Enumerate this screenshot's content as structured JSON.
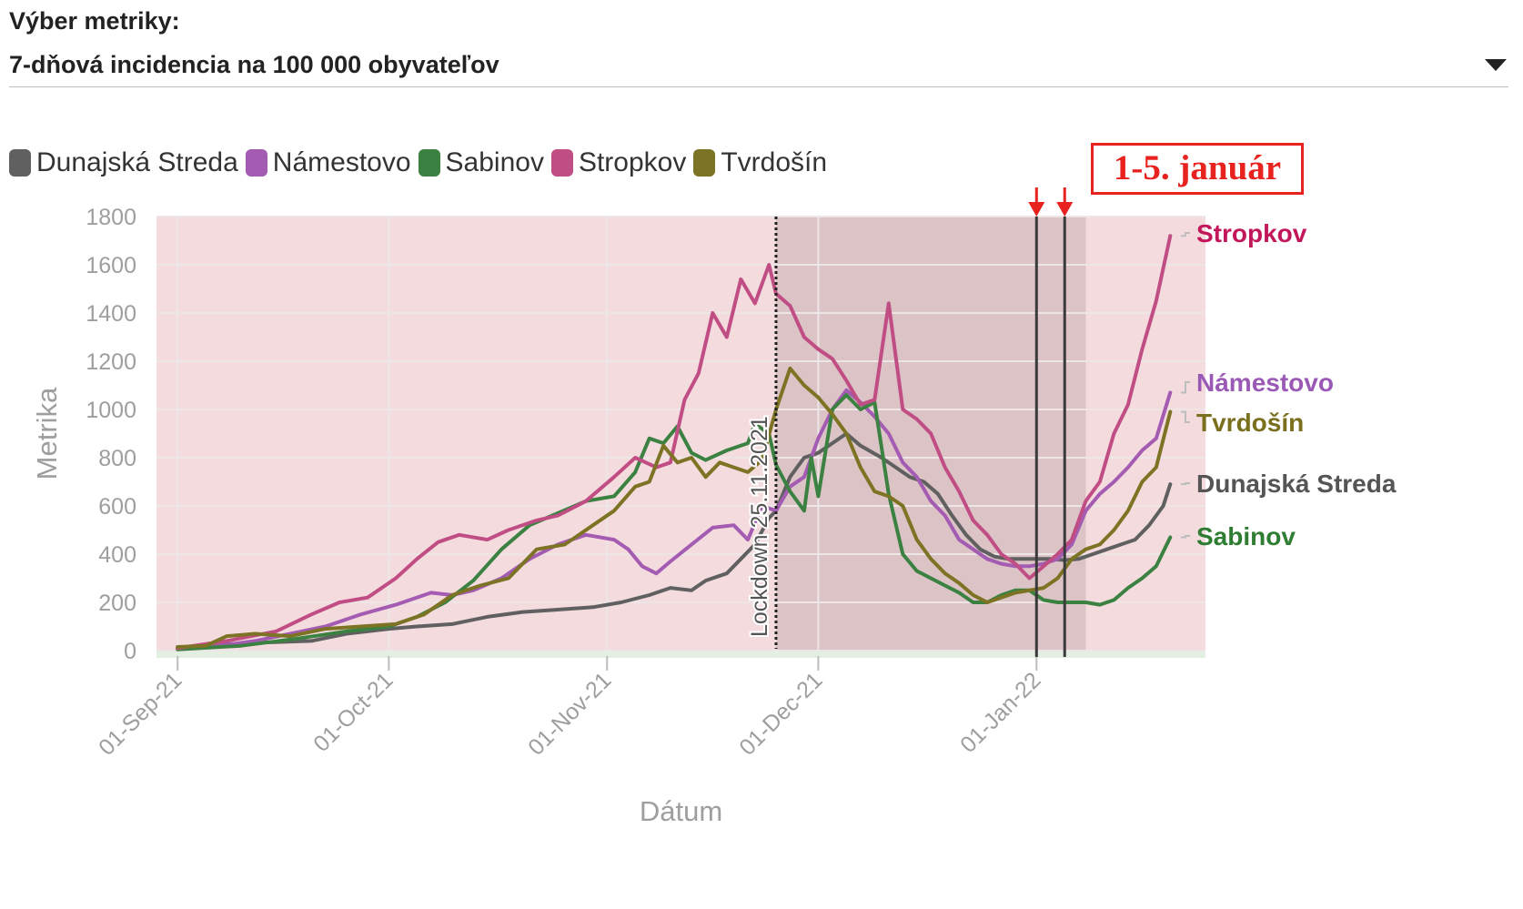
{
  "selector": {
    "label": "Výber metriky:",
    "value": "7-dňová incidencia na 100 000 obyvateľov"
  },
  "annotation": {
    "text": "1-5. január",
    "color": "#e8221f"
  },
  "colors": {
    "plot_background": "#f4dcde",
    "lockdown_shade": "#dcc3c6",
    "bottom_band": "#e3efe0",
    "grid": "#ece6e6",
    "axis_text": "#9e9e9e",
    "annotation": "#e8221f"
  },
  "chart_data": {
    "type": "line",
    "title": "",
    "xlabel": "Dátum",
    "ylabel": "Metrika",
    "ylim": [
      0,
      1800
    ],
    "y_ticks": [
      0,
      200,
      400,
      600,
      800,
      1000,
      1200,
      1400,
      1600,
      1800
    ],
    "x_ticks": [
      "01-Sep-21",
      "01-Oct-21",
      "01-Nov-21",
      "01-Dec-21",
      "01-Jan-22"
    ],
    "xlim": [
      "2021-08-29",
      "2022-01-25"
    ],
    "legend_position": "top-left",
    "grid": true,
    "lockdown": {
      "date": "2021-11-25",
      "label": "Lockdown 25.11.2021",
      "shaded_from": "2021-11-25",
      "shaded_to": "2022-01-08"
    },
    "markers": [
      {
        "date": "2022-01-01"
      },
      {
        "date": "2022-01-05"
      }
    ],
    "series": [
      {
        "name": "Dunajská Streda",
        "color": "#606060",
        "label_color": "#555555",
        "points": [
          [
            "2021-09-01",
            10
          ],
          [
            "2021-09-10",
            30
          ],
          [
            "2021-09-20",
            40
          ],
          [
            "2021-09-25",
            70
          ],
          [
            "2021-10-01",
            90
          ],
          [
            "2021-10-05",
            100
          ],
          [
            "2021-10-10",
            110
          ],
          [
            "2021-10-15",
            140
          ],
          [
            "2021-10-20",
            160
          ],
          [
            "2021-10-25",
            170
          ],
          [
            "2021-10-30",
            180
          ],
          [
            "2021-11-03",
            200
          ],
          [
            "2021-11-07",
            230
          ],
          [
            "2021-11-10",
            260
          ],
          [
            "2021-11-13",
            250
          ],
          [
            "2021-11-15",
            290
          ],
          [
            "2021-11-18",
            320
          ],
          [
            "2021-11-20",
            380
          ],
          [
            "2021-11-22",
            440
          ],
          [
            "2021-11-24",
            550
          ],
          [
            "2021-11-25",
            580
          ],
          [
            "2021-11-27",
            720
          ],
          [
            "2021-11-29",
            800
          ],
          [
            "2021-12-01",
            820
          ],
          [
            "2021-12-03",
            860
          ],
          [
            "2021-12-05",
            900
          ],
          [
            "2021-12-07",
            850
          ],
          [
            "2021-12-10",
            800
          ],
          [
            "2021-12-12",
            760
          ],
          [
            "2021-12-14",
            720
          ],
          [
            "2021-12-16",
            700
          ],
          [
            "2021-12-18",
            650
          ],
          [
            "2021-12-20",
            560
          ],
          [
            "2021-12-22",
            480
          ],
          [
            "2021-12-24",
            420
          ],
          [
            "2021-12-26",
            390
          ],
          [
            "2021-12-28",
            380
          ],
          [
            "2021-12-30",
            380
          ],
          [
            "2022-01-01",
            380
          ],
          [
            "2022-01-03",
            380
          ],
          [
            "2022-01-05",
            375
          ],
          [
            "2022-01-07",
            380
          ],
          [
            "2022-01-09",
            400
          ],
          [
            "2022-01-11",
            420
          ],
          [
            "2022-01-13",
            440
          ],
          [
            "2022-01-15",
            460
          ],
          [
            "2022-01-17",
            520
          ],
          [
            "2022-01-19",
            600
          ],
          [
            "2022-01-20",
            690
          ]
        ]
      },
      {
        "name": "Námestovo",
        "color": "#a45cb3",
        "label_color": "#9b59b6",
        "points": [
          [
            "2021-09-01",
            10
          ],
          [
            "2021-09-07",
            20
          ],
          [
            "2021-09-12",
            40
          ],
          [
            "2021-09-17",
            70
          ],
          [
            "2021-09-22",
            100
          ],
          [
            "2021-09-27",
            150
          ],
          [
            "2021-10-02",
            190
          ],
          [
            "2021-10-07",
            240
          ],
          [
            "2021-10-10",
            230
          ],
          [
            "2021-10-13",
            250
          ],
          [
            "2021-10-17",
            300
          ],
          [
            "2021-10-21",
            380
          ],
          [
            "2021-10-25",
            440
          ],
          [
            "2021-10-29",
            480
          ],
          [
            "2021-11-02",
            460
          ],
          [
            "2021-11-04",
            420
          ],
          [
            "2021-11-06",
            350
          ],
          [
            "2021-11-08",
            320
          ],
          [
            "2021-11-10",
            370
          ],
          [
            "2021-11-13",
            440
          ],
          [
            "2021-11-16",
            510
          ],
          [
            "2021-11-19",
            520
          ],
          [
            "2021-11-21",
            460
          ],
          [
            "2021-11-23",
            600
          ],
          [
            "2021-11-25",
            580
          ],
          [
            "2021-11-27",
            680
          ],
          [
            "2021-11-29",
            720
          ],
          [
            "2021-12-01",
            880
          ],
          [
            "2021-12-03",
            1000
          ],
          [
            "2021-12-05",
            1080
          ],
          [
            "2021-12-07",
            1030
          ],
          [
            "2021-12-09",
            970
          ],
          [
            "2021-12-11",
            900
          ],
          [
            "2021-12-13",
            780
          ],
          [
            "2021-12-15",
            720
          ],
          [
            "2021-12-17",
            620
          ],
          [
            "2021-12-19",
            560
          ],
          [
            "2021-12-21",
            460
          ],
          [
            "2021-12-23",
            420
          ],
          [
            "2021-12-25",
            380
          ],
          [
            "2021-12-27",
            360
          ],
          [
            "2021-12-29",
            350
          ],
          [
            "2021-12-31",
            350
          ],
          [
            "2022-01-02",
            360
          ],
          [
            "2022-01-04",
            380
          ],
          [
            "2022-01-06",
            440
          ],
          [
            "2022-01-08",
            580
          ],
          [
            "2022-01-10",
            650
          ],
          [
            "2022-01-12",
            700
          ],
          [
            "2022-01-14",
            760
          ],
          [
            "2022-01-16",
            830
          ],
          [
            "2022-01-18",
            880
          ],
          [
            "2022-01-20",
            1070
          ]
        ]
      },
      {
        "name": "Sabinov",
        "color": "#3b8141",
        "label_color": "#2e7d32",
        "points": [
          [
            "2021-09-01",
            5
          ],
          [
            "2021-09-10",
            20
          ],
          [
            "2021-09-18",
            50
          ],
          [
            "2021-09-25",
            80
          ],
          [
            "2021-10-01",
            100
          ],
          [
            "2021-10-05",
            140
          ],
          [
            "2021-10-09",
            200
          ],
          [
            "2021-10-13",
            290
          ],
          [
            "2021-10-17",
            420
          ],
          [
            "2021-10-21",
            520
          ],
          [
            "2021-10-25",
            570
          ],
          [
            "2021-10-29",
            620
          ],
          [
            "2021-11-02",
            640
          ],
          [
            "2021-11-05",
            740
          ],
          [
            "2021-11-07",
            880
          ],
          [
            "2021-11-09",
            860
          ],
          [
            "2021-11-11",
            930
          ],
          [
            "2021-11-13",
            820
          ],
          [
            "2021-11-15",
            790
          ],
          [
            "2021-11-18",
            830
          ],
          [
            "2021-11-21",
            860
          ],
          [
            "2021-11-22",
            940
          ],
          [
            "2021-11-24",
            900
          ],
          [
            "2021-11-25",
            770
          ],
          [
            "2021-11-27",
            660
          ],
          [
            "2021-11-29",
            580
          ],
          [
            "2021-11-30",
            800
          ],
          [
            "2021-12-01",
            640
          ],
          [
            "2021-12-03",
            1000
          ],
          [
            "2021-12-05",
            1060
          ],
          [
            "2021-12-07",
            1000
          ],
          [
            "2021-12-09",
            1030
          ],
          [
            "2021-12-11",
            650
          ],
          [
            "2021-12-13",
            400
          ],
          [
            "2021-12-15",
            330
          ],
          [
            "2021-12-17",
            300
          ],
          [
            "2021-12-19",
            270
          ],
          [
            "2021-12-21",
            240
          ],
          [
            "2021-12-23",
            200
          ],
          [
            "2021-12-25",
            200
          ],
          [
            "2021-12-27",
            230
          ],
          [
            "2021-12-29",
            250
          ],
          [
            "2021-12-31",
            250
          ],
          [
            "2022-01-02",
            210
          ],
          [
            "2022-01-04",
            200
          ],
          [
            "2022-01-06",
            200
          ],
          [
            "2022-01-08",
            200
          ],
          [
            "2022-01-10",
            190
          ],
          [
            "2022-01-12",
            210
          ],
          [
            "2022-01-14",
            260
          ],
          [
            "2022-01-16",
            300
          ],
          [
            "2022-01-18",
            350
          ],
          [
            "2022-01-20",
            470
          ]
        ]
      },
      {
        "name": "Stropkov",
        "color": "#c04e84",
        "label_color": "#c2185b",
        "points": [
          [
            "2021-09-01",
            10
          ],
          [
            "2021-09-08",
            40
          ],
          [
            "2021-09-15",
            80
          ],
          [
            "2021-09-20",
            150
          ],
          [
            "2021-09-24",
            200
          ],
          [
            "2021-09-28",
            220
          ],
          [
            "2021-10-02",
            300
          ],
          [
            "2021-10-05",
            380
          ],
          [
            "2021-10-08",
            450
          ],
          [
            "2021-10-11",
            480
          ],
          [
            "2021-10-15",
            460
          ],
          [
            "2021-10-18",
            500
          ],
          [
            "2021-10-22",
            540
          ],
          [
            "2021-10-25",
            560
          ],
          [
            "2021-10-29",
            620
          ],
          [
            "2021-11-02",
            720
          ],
          [
            "2021-11-05",
            800
          ],
          [
            "2021-11-08",
            760
          ],
          [
            "2021-11-10",
            780
          ],
          [
            "2021-11-12",
            1040
          ],
          [
            "2021-11-14",
            1150
          ],
          [
            "2021-11-16",
            1400
          ],
          [
            "2021-11-18",
            1300
          ],
          [
            "2021-11-20",
            1540
          ],
          [
            "2021-11-22",
            1440
          ],
          [
            "2021-11-24",
            1600
          ],
          [
            "2021-11-25",
            1480
          ],
          [
            "2021-11-27",
            1430
          ],
          [
            "2021-11-29",
            1300
          ],
          [
            "2021-12-01",
            1250
          ],
          [
            "2021-12-03",
            1210
          ],
          [
            "2021-12-05",
            1120
          ],
          [
            "2021-12-07",
            1020
          ],
          [
            "2021-12-09",
            1040
          ],
          [
            "2021-12-11",
            1440
          ],
          [
            "2021-12-13",
            1000
          ],
          [
            "2021-12-15",
            960
          ],
          [
            "2021-12-17",
            900
          ],
          [
            "2021-12-19",
            760
          ],
          [
            "2021-12-21",
            660
          ],
          [
            "2021-12-23",
            540
          ],
          [
            "2021-12-25",
            480
          ],
          [
            "2021-12-27",
            400
          ],
          [
            "2021-12-29",
            360
          ],
          [
            "2021-12-31",
            300
          ],
          [
            "2022-01-02",
            350
          ],
          [
            "2022-01-04",
            400
          ],
          [
            "2022-01-06",
            460
          ],
          [
            "2022-01-08",
            620
          ],
          [
            "2022-01-10",
            700
          ],
          [
            "2022-01-12",
            900
          ],
          [
            "2022-01-14",
            1020
          ],
          [
            "2022-01-16",
            1250
          ],
          [
            "2022-01-18",
            1450
          ],
          [
            "2022-01-20",
            1720
          ]
        ]
      },
      {
        "name": "Tvrdošín",
        "color": "#7c7424",
        "label_color": "#7a6f1d",
        "points": [
          [
            "2021-09-01",
            15
          ],
          [
            "2021-09-05",
            20
          ],
          [
            "2021-09-08",
            60
          ],
          [
            "2021-09-12",
            70
          ],
          [
            "2021-09-17",
            60
          ],
          [
            "2021-09-22",
            90
          ],
          [
            "2021-09-27",
            100
          ],
          [
            "2021-10-02",
            110
          ],
          [
            "2021-10-06",
            150
          ],
          [
            "2021-10-10",
            230
          ],
          [
            "2021-10-14",
            270
          ],
          [
            "2021-10-18",
            300
          ],
          [
            "2021-10-22",
            420
          ],
          [
            "2021-10-26",
            440
          ],
          [
            "2021-10-30",
            520
          ],
          [
            "2021-11-02",
            580
          ],
          [
            "2021-11-05",
            680
          ],
          [
            "2021-11-07",
            700
          ],
          [
            "2021-11-09",
            850
          ],
          [
            "2021-11-11",
            780
          ],
          [
            "2021-11-13",
            800
          ],
          [
            "2021-11-15",
            720
          ],
          [
            "2021-11-17",
            780
          ],
          [
            "2021-11-19",
            760
          ],
          [
            "2021-11-21",
            740
          ],
          [
            "2021-11-23",
            790
          ],
          [
            "2021-11-25",
            1000
          ],
          [
            "2021-11-27",
            1170
          ],
          [
            "2021-11-29",
            1100
          ],
          [
            "2021-12-01",
            1050
          ],
          [
            "2021-12-03",
            980
          ],
          [
            "2021-12-05",
            900
          ],
          [
            "2021-12-07",
            760
          ],
          [
            "2021-12-09",
            660
          ],
          [
            "2021-12-11",
            640
          ],
          [
            "2021-12-13",
            600
          ],
          [
            "2021-12-15",
            460
          ],
          [
            "2021-12-17",
            380
          ],
          [
            "2021-12-19",
            320
          ],
          [
            "2021-12-21",
            280
          ],
          [
            "2021-12-23",
            230
          ],
          [
            "2021-12-25",
            200
          ],
          [
            "2021-12-27",
            220
          ],
          [
            "2021-12-29",
            240
          ],
          [
            "2021-12-31",
            250
          ],
          [
            "2022-01-02",
            260
          ],
          [
            "2022-01-04",
            300
          ],
          [
            "2022-01-06",
            380
          ],
          [
            "2022-01-08",
            420
          ],
          [
            "2022-01-10",
            440
          ],
          [
            "2022-01-12",
            500
          ],
          [
            "2022-01-14",
            580
          ],
          [
            "2022-01-16",
            700
          ],
          [
            "2022-01-18",
            760
          ],
          [
            "2022-01-20",
            990
          ]
        ]
      }
    ]
  }
}
